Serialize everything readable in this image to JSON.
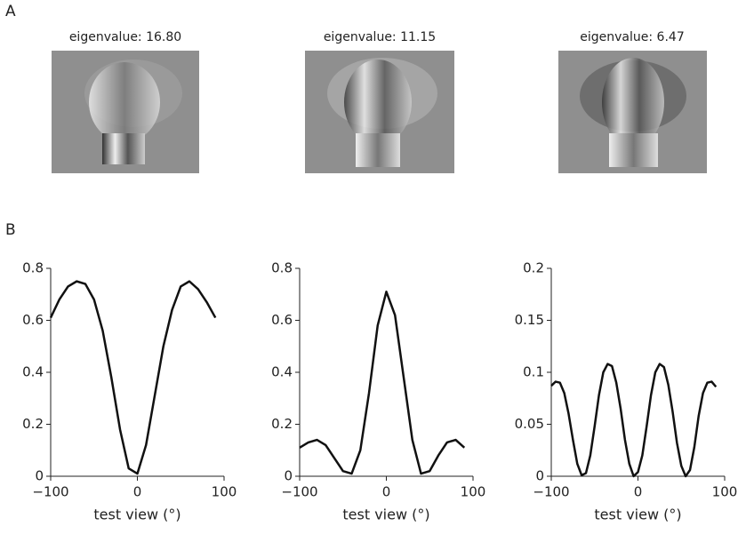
{
  "panel_a": {
    "label": "A",
    "captions": [
      "eigenvalue: 16.80",
      "eigenvalue: 11.15",
      "eigenvalue: 6.47"
    ]
  },
  "panel_b": {
    "label": "B"
  },
  "chart_data": [
    {
      "type": "line",
      "x_label": "test view (°)",
      "x": [
        -100,
        -90,
        -80,
        -70,
        -60,
        -50,
        -40,
        -30,
        -20,
        -10,
        0,
        10,
        20,
        30,
        40,
        50,
        60,
        70,
        80,
        90
      ],
      "series": [
        {
          "color": "#111111",
          "values": [
            0.61,
            0.68,
            0.73,
            0.75,
            0.74,
            0.68,
            0.56,
            0.38,
            0.18,
            0.03,
            0.01,
            0.12,
            0.31,
            0.5,
            0.64,
            0.73,
            0.75,
            0.72,
            0.67,
            0.61
          ]
        }
      ],
      "xlim": [
        -100,
        100
      ],
      "xticks": [
        {
          "value": -100,
          "label": "−100"
        },
        0,
        100
      ],
      "ylim": [
        0,
        0.8
      ],
      "yticks": [
        0,
        0.2,
        0.4,
        0.6,
        0.8
      ]
    },
    {
      "type": "line",
      "x_label": "test view (°)",
      "x": [
        -100,
        -90,
        -80,
        -70,
        -60,
        -50,
        -40,
        -30,
        -20,
        -10,
        0,
        10,
        20,
        30,
        40,
        50,
        60,
        70,
        80,
        90
      ],
      "series": [
        {
          "color": "#111111",
          "values": [
            0.11,
            0.13,
            0.14,
            0.12,
            0.07,
            0.02,
            0.01,
            0.1,
            0.32,
            0.58,
            0.71,
            0.62,
            0.38,
            0.14,
            0.01,
            0.02,
            0.08,
            0.13,
            0.14,
            0.11
          ]
        }
      ],
      "xlim": [
        -100,
        100
      ],
      "xticks": [
        {
          "value": -100,
          "label": "−100"
        },
        0,
        100
      ],
      "ylim": [
        0,
        0.8
      ],
      "yticks": [
        0,
        0.2,
        0.4,
        0.6,
        0.8
      ]
    },
    {
      "type": "line",
      "x_label": "test view (°)",
      "x": [
        -100,
        -95,
        -90,
        -85,
        -80,
        -75,
        -70,
        -65,
        -60,
        -55,
        -50,
        -45,
        -40,
        -35,
        -30,
        -25,
        -20,
        -15,
        -10,
        -5,
        0,
        5,
        10,
        15,
        20,
        25,
        30,
        35,
        40,
        45,
        50,
        55,
        60,
        65,
        70,
        75,
        80,
        85,
        90
      ],
      "series": [
        {
          "color": "#111111",
          "values": [
            0.087,
            0.091,
            0.09,
            0.08,
            0.06,
            0.035,
            0.012,
            0.001,
            0.003,
            0.02,
            0.048,
            0.078,
            0.1,
            0.108,
            0.106,
            0.09,
            0.065,
            0.035,
            0.012,
            0.0,
            0.004,
            0.02,
            0.048,
            0.078,
            0.1,
            0.108,
            0.105,
            0.088,
            0.062,
            0.032,
            0.01,
            0.0,
            0.006,
            0.028,
            0.058,
            0.08,
            0.09,
            0.091,
            0.086
          ]
        }
      ],
      "xlim": [
        -100,
        100
      ],
      "xticks": [
        {
          "value": -100,
          "label": "−100"
        },
        0,
        100
      ],
      "ylim": [
        0,
        0.2
      ],
      "yticks": [
        0,
        0.05,
        0.1,
        0.15,
        0.2
      ]
    }
  ]
}
